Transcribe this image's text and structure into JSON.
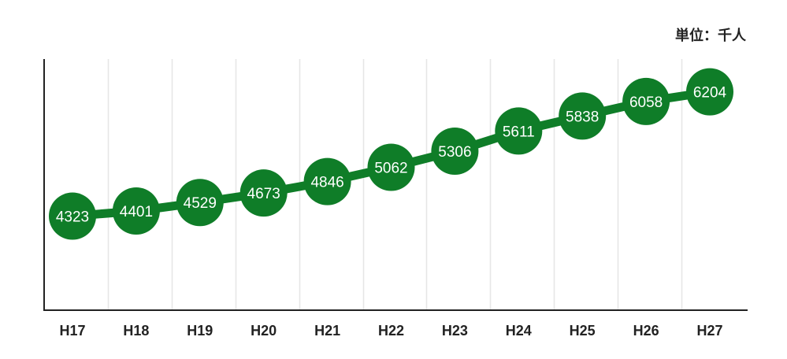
{
  "chart_data": {
    "type": "line",
    "title": "",
    "unit_note": "単位：千人",
    "xlabel": "",
    "ylabel": "",
    "categories": [
      "H17",
      "H18",
      "H19",
      "H20",
      "H21",
      "H22",
      "H23",
      "H24",
      "H25",
      "H26",
      "H27"
    ],
    "series": [
      {
        "values": [
          4323,
          4401,
          4529,
          4673,
          4846,
          5062,
          5306,
          5611,
          5838,
          6058,
          6204
        ]
      }
    ],
    "ylim": [
      2900,
      6700
    ],
    "grid": "vertical",
    "data_labels": true,
    "colors": {
      "series": "#0f7d28",
      "grid": "#e6e6e6",
      "axis": "#222222",
      "label": "#ffffff"
    }
  }
}
